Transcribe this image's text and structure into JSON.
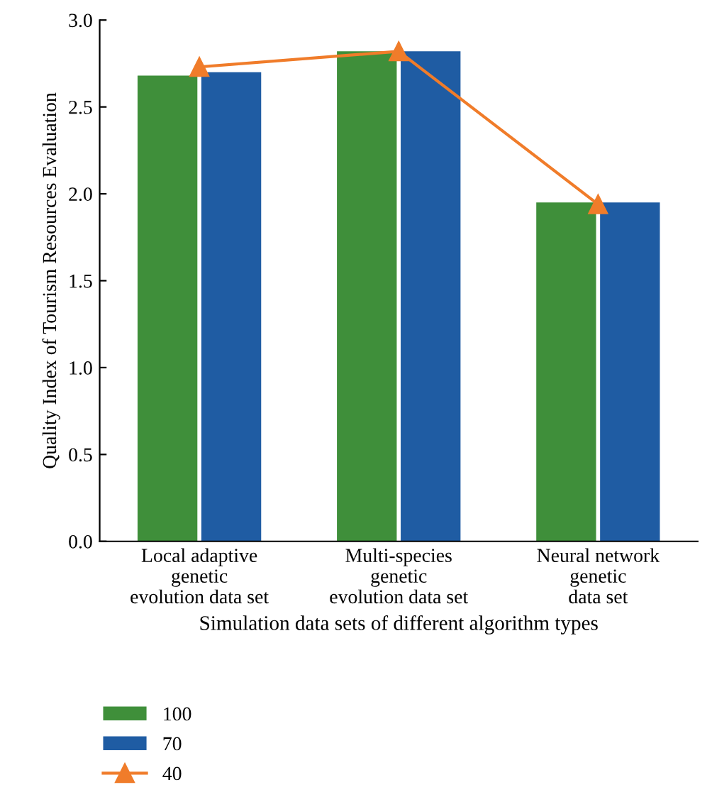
{
  "chart_data": {
    "type": "bar",
    "categories": [
      "Local adaptive\ngenetic\nevolution data set",
      "Multi-species\ngenetic\nevolution data set",
      "Neural network\ngenetic\ndata set"
    ],
    "series": [
      {
        "name": "100",
        "color": "#3f8f3a",
        "values": [
          2.68,
          2.82,
          1.95
        ]
      },
      {
        "name": "70",
        "color": "#1f5ca3",
        "values": [
          2.7,
          2.82,
          1.95
        ]
      },
      {
        "name": "40",
        "type": "line",
        "color": "#f07c2a",
        "marker": "triangle",
        "values": [
          2.73,
          2.82,
          1.94
        ]
      }
    ],
    "xlabel": "Simulation data sets of different algorithm types",
    "ylabel": "Quality Index of Tourism Resources Evaluation",
    "ylim": [
      0,
      3.0
    ],
    "yticks": [
      {
        "value": 0,
        "label": "0.0"
      },
      {
        "value": 0.5,
        "label": "0.5"
      },
      {
        "value": 1.0,
        "label": "1.0"
      },
      {
        "value": 1.5,
        "label": "1.5"
      },
      {
        "value": 2.0,
        "label": "2.0"
      },
      {
        "value": 2.5,
        "label": "2.5"
      },
      {
        "value": 3.0,
        "label": "3.0"
      }
    ],
    "grid": false,
    "legend": "bottom left"
  }
}
